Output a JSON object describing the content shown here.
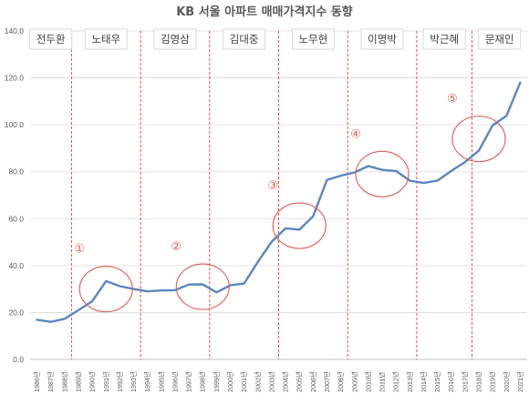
{
  "chart_data": {
    "type": "line",
    "title": "KB 서울 아파트 매매가격지수 동향",
    "xlabel": "",
    "ylabel": "",
    "ylim": [
      0,
      140
    ],
    "yticks": [
      "0.0",
      "20.0",
      "40.0",
      "60.0",
      "80.0",
      "100.0",
      "120.0",
      "140.0"
    ],
    "grid": true,
    "x": [
      "1986년",
      "1987년",
      "1988년",
      "1989년",
      "1990년",
      "1991년",
      "1992년",
      "1993년",
      "1994년",
      "1995년",
      "1996년",
      "1997년",
      "1998년",
      "1999년",
      "2000년",
      "2001년",
      "2002년",
      "2003년",
      "2004년",
      "2005년",
      "2006년",
      "2007년",
      "2008년",
      "2009년",
      "2010년",
      "2011년",
      "2012년",
      "2013년",
      "2014년",
      "2015년",
      "2016년",
      "2017년",
      "2018년",
      "2019년",
      "2020년",
      "2021년"
    ],
    "series": [
      {
        "color": "#5b86bf",
        "values": [
          16.9,
          16.0,
          17.3,
          21.0,
          24.8,
          33.4,
          31.2,
          30.0,
          29.0,
          29.4,
          29.5,
          31.9,
          32.0,
          28.6,
          31.6,
          32.4,
          41.6,
          50.2,
          55.9,
          55.3,
          61.0,
          76.5,
          78.3,
          79.7,
          82.4,
          80.8,
          80.3,
          76.2,
          75.2,
          76.2,
          80.3,
          84.1,
          89.0,
          99.8,
          103.8,
          118.0
        ]
      }
    ],
    "eras": [
      {
        "label": "전두환",
        "start": "1986년",
        "end": "1988년"
      },
      {
        "label": "노태우",
        "start": "1988년",
        "end": "1993년"
      },
      {
        "label": "김영삼",
        "start": "1993년",
        "end": "1998년"
      },
      {
        "label": "김대중",
        "start": "1998년",
        "end": "2003년"
      },
      {
        "label": "노무현",
        "start": "2003년",
        "end": "2008년"
      },
      {
        "label": "이명박",
        "start": "2008년",
        "end": "2013년"
      },
      {
        "label": "박근혜",
        "start": "2013년",
        "end": "2017년"
      },
      {
        "label": "문재인",
        "start": "2017년",
        "end": "2021년"
      }
    ],
    "annotations": [
      {
        "label": "①",
        "x": "1991년",
        "y": 30
      },
      {
        "label": "②",
        "x": "1998년",
        "y": 31
      },
      {
        "label": "③",
        "x": "2005년",
        "y": 57
      },
      {
        "label": "④",
        "x": "2011년",
        "y": 79
      },
      {
        "label": "⑤",
        "x": "2018년",
        "y": 94
      }
    ],
    "annotation_color": "#e05a52"
  }
}
